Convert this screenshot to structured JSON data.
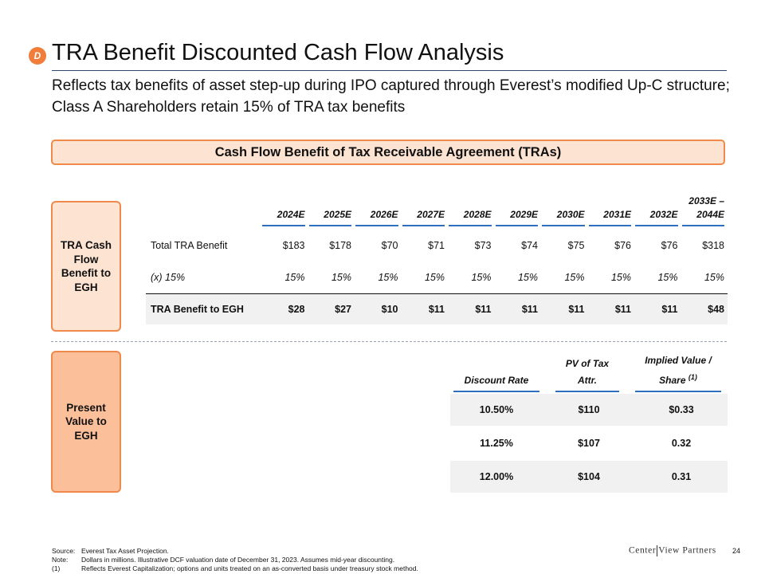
{
  "header": {
    "badge": "D",
    "title": "TRA Benefit Discounted Cash Flow Analysis",
    "subtitle": "Reflects tax benefits of asset step-up during IPO captured through Everest’s modified Up-C structure; Class A Shareholders retain 15% of TRA tax benefits"
  },
  "banner": "Cash Flow Benefit of Tax Receivable Agreement (TRAs)",
  "side_labels": {
    "tra_cash_flow": "TRA Cash Flow Benefit to EGH",
    "present_value": "Present Value to EGH"
  },
  "cash_flow_table": {
    "columns": [
      "2024E",
      "2025E",
      "2026E",
      "2027E",
      "2028E",
      "2029E",
      "2030E",
      "2031E",
      "2032E",
      "2033E – 2044E"
    ],
    "rows": [
      {
        "label": "Total TRA Benefit",
        "values": [
          "$183",
          "$178",
          "$70",
          "$71",
          "$73",
          "$74",
          "$75",
          "$76",
          "$76",
          "$318"
        ]
      },
      {
        "label": "(x) 15%",
        "values": [
          "15%",
          "15%",
          "15%",
          "15%",
          "15%",
          "15%",
          "15%",
          "15%",
          "15%",
          "15%"
        ]
      },
      {
        "label": "TRA Benefit to EGH",
        "values": [
          "$28",
          "$27",
          "$10",
          "$11",
          "$11",
          "$11",
          "$11",
          "$11",
          "$11",
          "$48"
        ]
      }
    ]
  },
  "pv_table": {
    "headers": {
      "discount_rate": "Discount Rate",
      "pv_of_tax_attr": "PV of Tax Attr.",
      "implied_value": "Implied Value / Share",
      "implied_value_note": "(1)"
    },
    "rows": [
      {
        "rate": "10.50%",
        "pv": "$110",
        "implied": "$0.33"
      },
      {
        "rate": "11.25%",
        "pv": "$107",
        "implied": "0.32"
      },
      {
        "rate": "12.00%",
        "pv": "$104",
        "implied": "0.31"
      }
    ]
  },
  "footnotes": [
    {
      "key": "Source:",
      "text": "Everest Tax Asset Projection."
    },
    {
      "key": "Note:",
      "text": "Dollars in millions. Illustrative DCF valuation date of December 31, 2023. Assumes mid-year discounting."
    },
    {
      "key": "(1)",
      "text": "Reflects Everest Capitalization; options and units treated on an as-converted basis under treasury stock method."
    }
  ],
  "logo": {
    "left": "Center",
    "right": "View Partners"
  },
  "page_number": "24",
  "colors": {
    "accent_orange": "#f08a4b",
    "rule_blue": "#2f6fbf",
    "title_rule": "#2d4a6e"
  }
}
